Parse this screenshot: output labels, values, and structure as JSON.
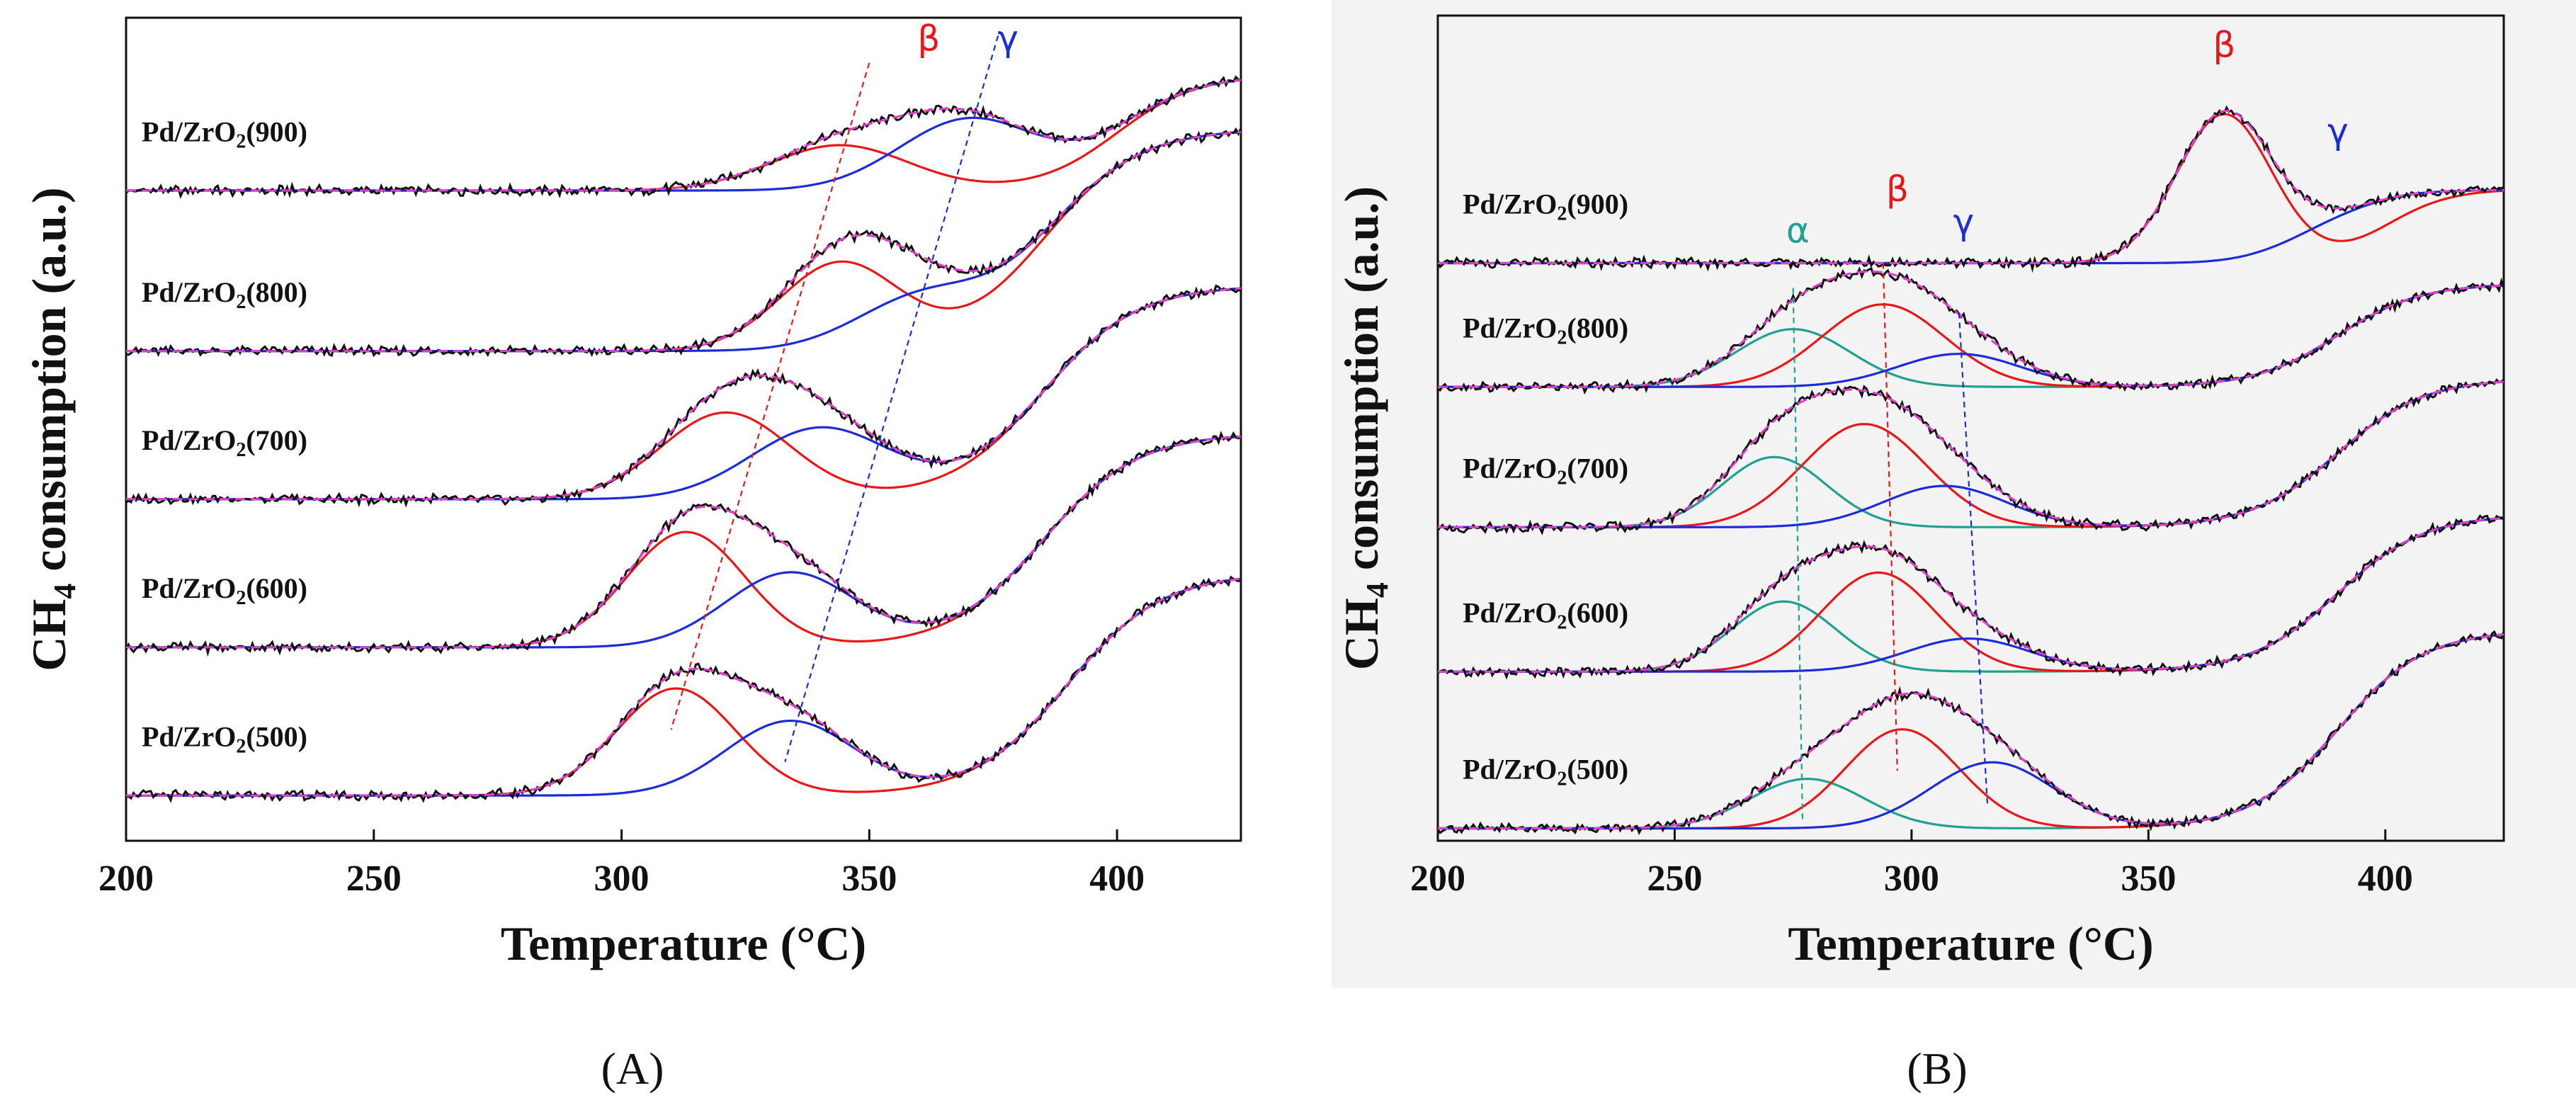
{
  "colors": {
    "experimental": "#111111",
    "fit_envelope": "#e040c8",
    "alpha": "#20a090",
    "beta": "#e81818",
    "gamma": "#1c2cd8",
    "axis": "#111111"
  },
  "chart_data": [
    {
      "type": "line",
      "panel_label": "(A)",
      "xlabel": "Temperature (°C)",
      "ylabel": "CH4 consumption (a.u.)",
      "ylabel_main": "CH",
      "ylabel_sub": "4",
      "ylabel_rest": " consumption (a.u.)",
      "xlim": [
        200,
        425
      ],
      "ylim": [
        0,
        100
      ],
      "xticks": [
        200,
        250,
        300,
        350,
        400
      ],
      "xtick_labels": [
        "200",
        "250",
        "300",
        "350",
        "400"
      ],
      "peak_labels": [
        {
          "text": "β",
          "component": "beta",
          "x": 362,
          "y": 96
        },
        {
          "text": "γ",
          "component": "gamma",
          "x": 378,
          "y": 96
        }
      ],
      "series": [
        {
          "name": "Pd/ZrO2(900)",
          "label_text": "Pd/ZrO",
          "label_sub": "2",
          "label_rest": "(900)",
          "label_x": 200,
          "baseline": 79,
          "drift": 14,
          "drift_center": 400,
          "drift_width": 35,
          "peaks": [
            {
              "component": "beta",
              "center": 344,
              "height": 5.5,
              "width": 14
            },
            {
              "component": "gamma",
              "center": 370,
              "height": 8.5,
              "width": 14
            }
          ]
        },
        {
          "name": "Pd/ZrO2(800)",
          "label_text": "Pd/ZrO",
          "label_sub": "2",
          "label_rest": "(800)",
          "label_x": 200,
          "baseline": 59.5,
          "drift": 27,
          "drift_center": 385,
          "drift_width": 42,
          "peaks": [
            {
              "component": "beta",
              "center": 344,
              "height": 10.5,
              "width": 12
            },
            {
              "component": "gamma",
              "center": 360,
              "height": 5.5,
              "width": 13
            }
          ]
        },
        {
          "name": "Pd/ZrO2(700)",
          "label_text": "Pd/ZrO",
          "label_sub": "2",
          "label_rest": "(700)",
          "label_x": 200,
          "baseline": 41.5,
          "drift": 26,
          "drift_center": 385,
          "drift_width": 42,
          "peaks": [
            {
              "component": "beta",
              "center": 321,
              "height": 10.5,
              "width": 13
            },
            {
              "component": "gamma",
              "center": 340,
              "height": 8.5,
              "width": 14
            }
          ]
        },
        {
          "name": "Pd/ZrO2(600)",
          "label_text": "Pd/ZrO",
          "label_sub": "2",
          "label_rest": "(600)",
          "label_x": 200,
          "baseline": 23.5,
          "drift": 26,
          "drift_center": 385,
          "drift_width": 42,
          "peaks": [
            {
              "component": "beta",
              "center": 313,
              "height": 14,
              "width": 12
            },
            {
              "component": "gamma",
              "center": 334,
              "height": 9,
              "width": 13
            }
          ]
        },
        {
          "name": "Pd/ZrO2(500)",
          "label_text": "Pd/ZrO",
          "label_sub": "2",
          "label_rest": "(500)",
          "label_x": 200,
          "baseline": 5.5,
          "drift": 27,
          "drift_center": 390,
          "drift_width": 42,
          "peaks": [
            {
              "component": "beta",
              "center": 311,
              "height": 13,
              "width": 12
            },
            {
              "component": "gamma",
              "center": 334,
              "height": 9,
              "width": 13
            }
          ]
        }
      ]
    },
    {
      "type": "line",
      "panel_label": "(B)",
      "xlabel": "Temperature (°C)",
      "ylabel": "CH4 consumption (a.u.)",
      "ylabel_main": "CH",
      "ylabel_sub": "4",
      "ylabel_rest": " consumption (a.u.)",
      "xlim": [
        200,
        425
      ],
      "ylim": [
        0,
        100
      ],
      "xticks": [
        200,
        250,
        300,
        350,
        400
      ],
      "xtick_labels": [
        "200",
        "250",
        "300",
        "350",
        "400"
      ],
      "peak_labels": [
        {
          "text": "α",
          "component": "alpha",
          "x": 276,
          "y": 72.5
        },
        {
          "text": "β",
          "component": "beta",
          "x": 297,
          "y": 77.5
        },
        {
          "text": "γ",
          "component": "gamma",
          "x": 311,
          "y": 73.5
        },
        {
          "text": "β",
          "component": "beta",
          "x": 366,
          "y": 95
        },
        {
          "text": "γ",
          "component": "gamma",
          "x": 390,
          "y": 84.5
        }
      ],
      "series": [
        {
          "name": "Pd/ZrO2(900)",
          "label_text": "Pd/ZrO",
          "label_sub": "2",
          "label_rest": "(900)",
          "label_x": 203,
          "baseline": 70,
          "drift": 9,
          "drift_center": 400,
          "drift_width": 30,
          "peaks": [
            {
              "component": "beta",
              "center": 366,
              "height": 18,
              "width": 10
            },
            {
              "component": "gamma",
              "center": 392,
              "height": 4,
              "width": 12
            }
          ]
        },
        {
          "name": "Pd/ZrO2(800)",
          "label_text": "Pd/ZrO",
          "label_sub": "2",
          "label_rest": "(800)",
          "label_x": 203,
          "baseline": 55,
          "drift": 12.5,
          "drift_center": 390,
          "drift_width": 38,
          "peaks": [
            {
              "component": "alpha",
              "center": 275,
              "height": 7,
              "width": 12
            },
            {
              "component": "beta",
              "center": 294,
              "height": 10,
              "width": 13
            },
            {
              "component": "gamma",
              "center": 310,
              "height": 4,
              "width": 13
            }
          ]
        },
        {
          "name": "Pd/ZrO2(700)",
          "label_text": "Pd/ZrO",
          "label_sub": "2",
          "label_rest": "(700)",
          "label_x": 203,
          "baseline": 38,
          "drift": 18,
          "drift_center": 390,
          "drift_width": 40,
          "peaks": [
            {
              "component": "alpha",
              "center": 271,
              "height": 8.5,
              "width": 11
            },
            {
              "component": "beta",
              "center": 290,
              "height": 12.5,
              "width": 13
            },
            {
              "component": "gamma",
              "center": 307,
              "height": 5,
              "width": 13
            }
          ]
        },
        {
          "name": "Pd/ZrO2(600)",
          "label_text": "Pd/ZrO",
          "label_sub": "2",
          "label_rest": "(600)",
          "label_x": 203,
          "baseline": 20.5,
          "drift": 19,
          "drift_center": 390,
          "drift_width": 40,
          "peaks": [
            {
              "component": "alpha",
              "center": 273,
              "height": 8.5,
              "width": 11
            },
            {
              "component": "beta",
              "center": 293,
              "height": 12,
              "width": 12
            },
            {
              "component": "gamma",
              "center": 312,
              "height": 4,
              "width": 13
            }
          ]
        },
        {
          "name": "Pd/ZrO2(500)",
          "label_text": "Pd/ZrO",
          "label_sub": "2",
          "label_rest": "(500)",
          "label_x": 203,
          "baseline": 1.5,
          "drift": 24,
          "drift_center": 390,
          "drift_width": 40,
          "peaks": [
            {
              "component": "alpha",
              "center": 278,
              "height": 6,
              "width": 12
            },
            {
              "component": "beta",
              "center": 298,
              "height": 12,
              "width": 12
            },
            {
              "component": "gamma",
              "center": 317,
              "height": 8,
              "width": 13
            }
          ]
        }
      ]
    }
  ]
}
